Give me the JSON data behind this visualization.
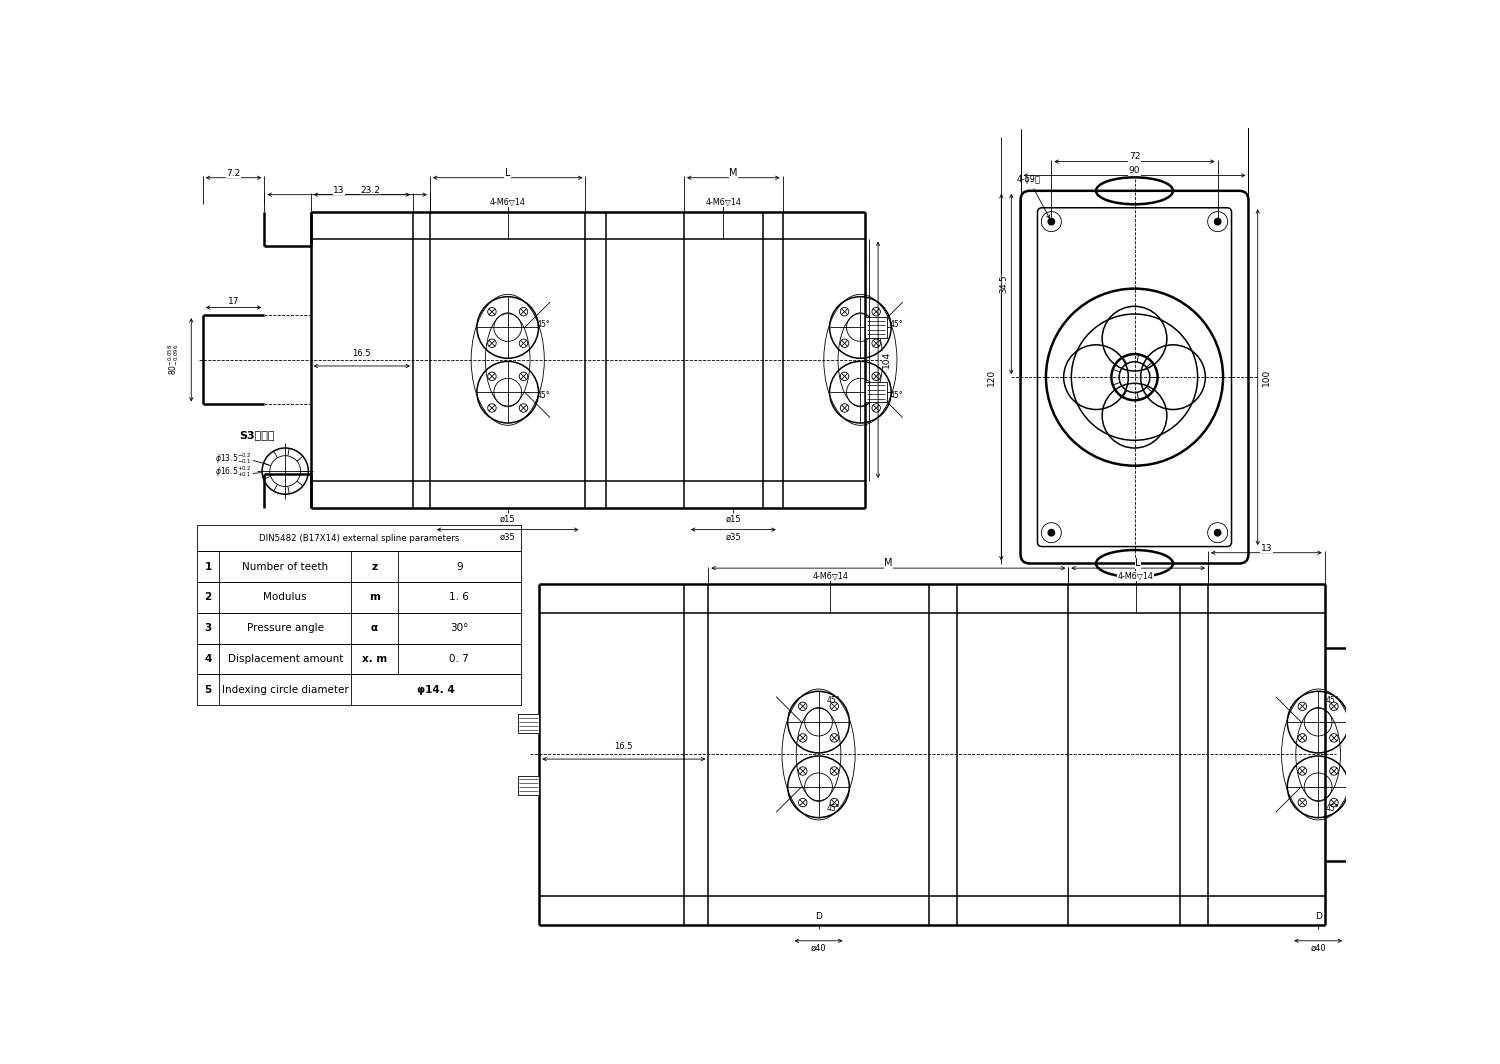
{
  "bg_color": "#ffffff",
  "line_color": "#000000",
  "table_header": "DIN5482 (B17X14) external spline parameters",
  "table_rows": [
    [
      "1",
      "Number of teeth",
      "z",
      "9"
    ],
    [
      "2",
      "Modulus",
      "m",
      "1. 6"
    ],
    [
      "3",
      "Pressure angle",
      "α",
      "30°"
    ],
    [
      "4",
      "Displacement amount",
      "x. m",
      "0. 7"
    ],
    [
      "5",
      "Indexing circle diameter",
      "φ14. 4",
      ""
    ]
  ],
  "spline_note": "S3齿轴件"
}
